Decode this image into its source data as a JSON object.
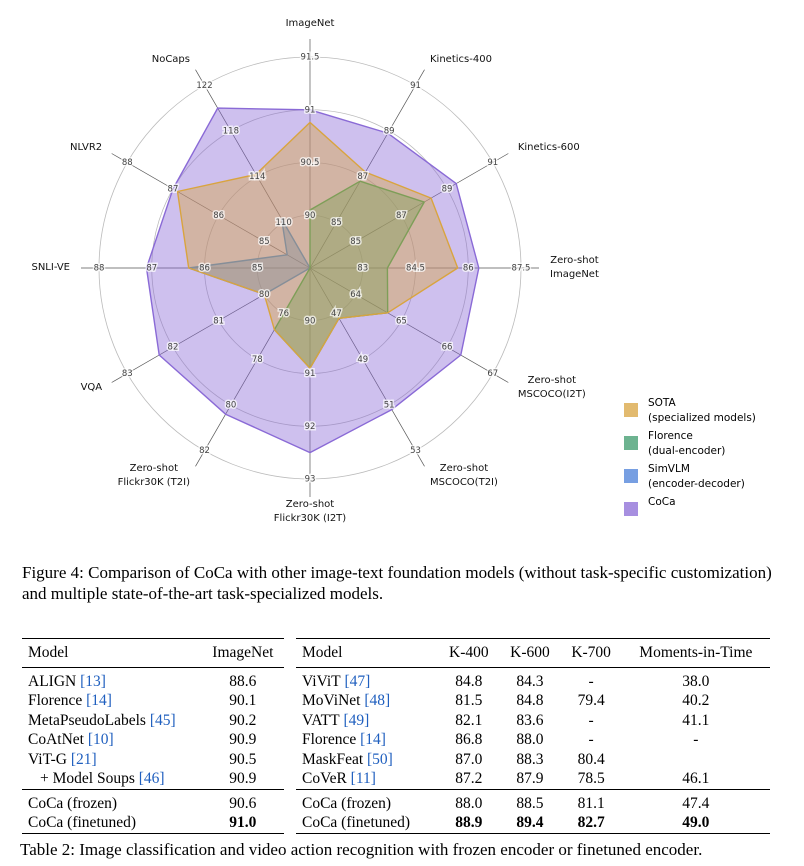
{
  "chart_data": {
    "type": "radar",
    "categories": [
      "ImageNet",
      "Kinetics-400",
      "Kinetics-600",
      "Zero-shot\nImageNet",
      "Zero-shot\nMSCOCO(I2T)",
      "Zero-shot\nMSCOCO(T2I)",
      "Zero-shot\nFlickr30K (I2T)",
      "Zero-shot\nFlickr30K (T2I)",
      "VQA",
      "SNLI-VE",
      "NLVR2",
      "NoCaps"
    ],
    "rlims": [
      [
        89.5,
        91.5
      ],
      [
        83,
        91
      ],
      [
        83,
        91
      ],
      [
        81.5,
        87.5
      ],
      [
        63,
        67
      ],
      [
        45,
        53
      ],
      [
        89,
        93
      ],
      [
        74,
        82
      ],
      [
        79,
        83
      ],
      [
        84,
        88
      ],
      [
        84,
        88
      ],
      [
        106,
        122
      ]
    ],
    "rticks": [
      [
        90,
        90.5,
        91,
        91.5
      ],
      [
        85,
        87,
        89,
        91
      ],
      [
        85,
        87,
        89,
        91
      ],
      [
        83,
        84.5,
        86,
        87.5
      ],
      [
        64,
        65,
        66,
        67
      ],
      [
        47,
        49,
        51,
        53
      ],
      [
        90,
        91,
        92,
        93
      ],
      [
        76,
        78,
        80,
        82
      ],
      [
        80,
        81,
        82,
        83
      ],
      [
        85,
        86,
        87,
        88
      ],
      [
        85,
        86,
        87,
        88
      ],
      [
        110,
        114,
        118,
        122
      ]
    ],
    "series": [
      {
        "name": "SOTA\n(specialized models)",
        "color": "#d9a43f",
        "values": [
          90.88,
          87.2,
          88.3,
          85.7,
          64.7,
          47.2,
          90.9,
          76.7,
          80.0,
          86.3,
          86.9,
          114.2
        ]
      },
      {
        "name": "Florence\n(dual-encoder)",
        "color": "#3d9a6b",
        "values": [
          90.05,
          86.8,
          88.0,
          83.7,
          64.7,
          47.2,
          90.9,
          76.7,
          null,
          null,
          null,
          null
        ]
      },
      {
        "name": "SimVLM\n(encoder-decoder)",
        "color": "#4a7fd9",
        "values": [
          null,
          null,
          null,
          null,
          null,
          null,
          null,
          null,
          80.0,
          86.3,
          84.5,
          110.3
        ]
      },
      {
        "name": "CoCa",
        "color": "#8a6ad6",
        "values": [
          91.0,
          88.9,
          89.4,
          86.3,
          66.3,
          51.2,
          92.5,
          80.4,
          82.3,
          87.1,
          87.0,
          120.0
        ]
      }
    ]
  },
  "figure_caption": "Figure 4: Comparison of CoCa with other image-text foundation models (without task-specific customization) and multiple state-of-the-art task-specialized models.",
  "table_left": {
    "columns": [
      "Model",
      "ImageNet"
    ],
    "rows": [
      {
        "model": "ALIGN",
        "ref": "[13]",
        "values": [
          "88.6"
        ]
      },
      {
        "model": "Florence",
        "ref": "[14]",
        "values": [
          "90.1"
        ]
      },
      {
        "model": "MetaPseudoLabels",
        "ref": "[45]",
        "values": [
          "90.2"
        ]
      },
      {
        "model": "CoAtNet",
        "ref": "[10]",
        "values": [
          "90.9"
        ]
      },
      {
        "model": "ViT-G",
        "ref": "[21]",
        "values": [
          "90.5"
        ]
      },
      {
        "model": "+ Model Soups",
        "ref": "[46]",
        "values": [
          "90.9"
        ],
        "indent": true
      }
    ],
    "ours": [
      {
        "model": "CoCa (frozen)",
        "values": [
          "90.6"
        ]
      },
      {
        "model": "CoCa (finetuned)",
        "values": [
          "91.0"
        ],
        "bold": true
      }
    ]
  },
  "table_right": {
    "columns": [
      "Model",
      "K-400",
      "K-600",
      "K-700",
      "Moments-in-Time"
    ],
    "rows": [
      {
        "model": "ViViT",
        "ref": "[47]",
        "values": [
          "84.8",
          "84.3",
          "-",
          "38.0"
        ]
      },
      {
        "model": "MoViNet",
        "ref": "[48]",
        "values": [
          "81.5",
          "84.8",
          "79.4",
          "40.2"
        ]
      },
      {
        "model": "VATT",
        "ref": "[49]",
        "values": [
          "82.1",
          "83.6",
          "-",
          "41.1"
        ]
      },
      {
        "model": "Florence",
        "ref": "[14]",
        "values": [
          "86.8",
          "88.0",
          "-",
          "-"
        ]
      },
      {
        "model": "MaskFeat",
        "ref": "[50]",
        "values": [
          "87.0",
          "88.3",
          "80.4",
          null
        ]
      },
      {
        "model": "CoVeR",
        "ref": "[11]",
        "values": [
          "87.2",
          "87.9",
          "78.5",
          "46.1"
        ]
      }
    ],
    "ours": [
      {
        "model": "CoCa (frozen)",
        "values": [
          "88.0",
          "88.5",
          "81.1",
          "47.4"
        ]
      },
      {
        "model": "CoCa (finetuned)",
        "values": [
          "88.9",
          "89.4",
          "82.7",
          "49.0"
        ],
        "bold": true
      }
    ]
  },
  "table_caption": "Table 2: Image classification and video action recognition with frozen encoder or finetuned encoder."
}
